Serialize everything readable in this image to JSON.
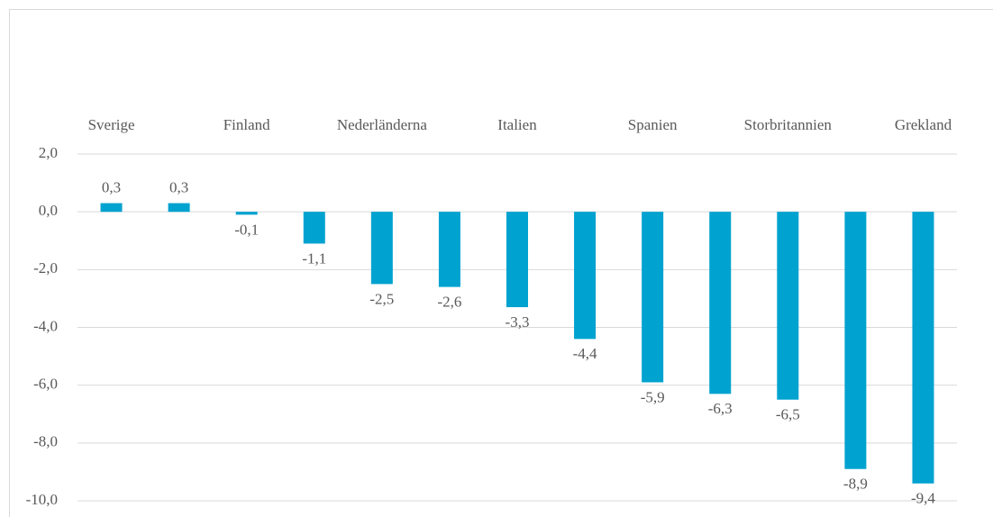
{
  "chart_data": {
    "type": "bar",
    "categories": [
      "Sverige",
      null,
      "Finland",
      null,
      "Nederländerna",
      null,
      "Italien",
      null,
      "Spanien",
      null,
      "Storbritannien",
      null,
      "Grekland"
    ],
    "values": [
      0.3,
      0.3,
      -0.1,
      -1.1,
      -2.5,
      -2.6,
      -3.3,
      -4.4,
      -5.9,
      -6.3,
      -6.5,
      -8.9,
      -9.4
    ],
    "value_labels": [
      "0,3",
      "0,3",
      "-0,1",
      "-1,1",
      "-2,5",
      "-2,6",
      "-3,3",
      "-4,4",
      "-5,9",
      "-6,3",
      "-6,5",
      "-8,9",
      "-9,4"
    ],
    "color": "#00a2d0",
    "ylim": [
      -10,
      2
    ],
    "yticks": [
      {
        "value": 2,
        "label": "2,0"
      },
      {
        "value": 0,
        "label": "0,0"
      },
      {
        "value": -2,
        "label": "-2,0"
      },
      {
        "value": -4,
        "label": "-4,0"
      },
      {
        "value": -6,
        "label": "-6,0"
      },
      {
        "value": -8,
        "label": "-8,0"
      },
      {
        "value": -10,
        "label": "-10,0"
      }
    ],
    "grid": true
  }
}
